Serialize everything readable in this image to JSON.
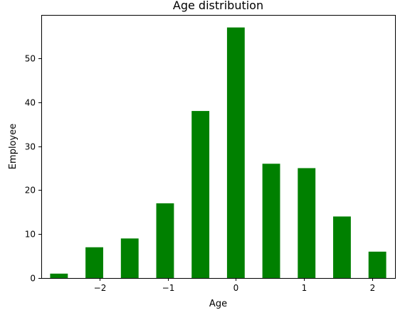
{
  "chart_data": {
    "type": "bar",
    "title": "Age distribution",
    "xlabel": "Age",
    "ylabel": "Employee",
    "x": [
      -2.6,
      -2.08,
      -1.56,
      -1.04,
      -0.52,
      0.0,
      0.52,
      1.04,
      1.56,
      2.08
    ],
    "values": [
      1,
      7,
      9,
      17,
      38,
      57,
      26,
      25,
      14,
      6
    ],
    "bar_width": 0.26,
    "xlim": [
      -2.86,
      2.34
    ],
    "ylim": [
      0,
      59.85
    ],
    "xticks": [
      -2,
      -1,
      0,
      1,
      2
    ],
    "xtick_labels": [
      "−2",
      "−1",
      "0",
      "1",
      "2"
    ],
    "yticks": [
      0,
      10,
      20,
      30,
      40,
      50
    ],
    "ytick_labels": [
      "0",
      "10",
      "20",
      "30",
      "40",
      "50"
    ],
    "bar_color": "#008000",
    "grid": false,
    "legend": "none"
  }
}
